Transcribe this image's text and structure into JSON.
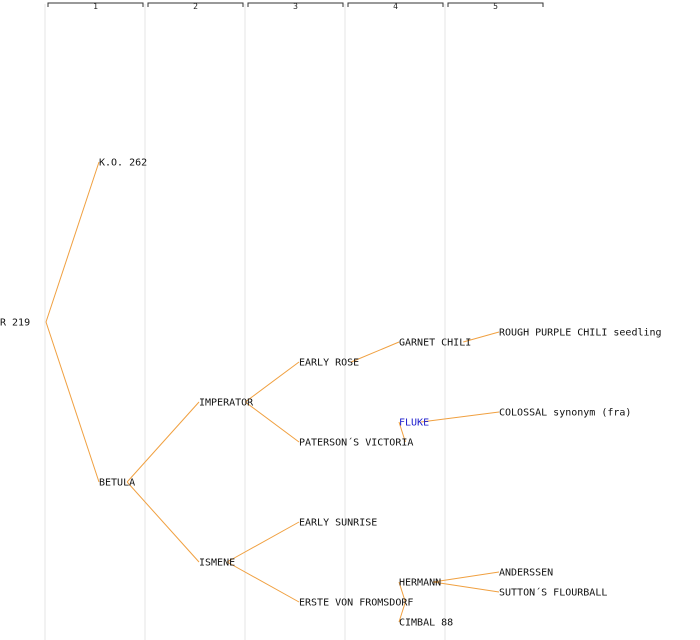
{
  "generations": [
    "1",
    "2",
    "3",
    "4",
    "5"
  ],
  "colors": {
    "branch": "#f0a040",
    "divider": "#e6e6e6",
    "bracket": "#333333",
    "text": "#111111",
    "highlight": "#1a1acc"
  },
  "nodes": [
    {
      "id": "root",
      "label": "R 219",
      "generation": 0,
      "parent": null
    },
    {
      "id": "ko262",
      "label": "K.O. 262",
      "generation": 1,
      "parent": "root"
    },
    {
      "id": "betula",
      "label": "BETULA",
      "generation": 1,
      "parent": "root"
    },
    {
      "id": "imperator",
      "label": "IMPERATOR",
      "generation": 2,
      "parent": "betula"
    },
    {
      "id": "ismene",
      "label": "ISMENE",
      "generation": 2,
      "parent": "betula"
    },
    {
      "id": "early-rose",
      "label": "EARLY ROSE",
      "generation": 3,
      "parent": "imperator"
    },
    {
      "id": "patersons-victoria",
      "label": "PATERSON´S VICTORIA",
      "generation": 3,
      "parent": "imperator"
    },
    {
      "id": "early-sunrise",
      "label": "EARLY SUNRISE",
      "generation": 3,
      "parent": "ismene"
    },
    {
      "id": "erste-von-fromsdorf",
      "label": "ERSTE VON FROMSDORF",
      "generation": 3,
      "parent": "ismene"
    },
    {
      "id": "garnet-chili",
      "label": "GARNET CHILI",
      "generation": 4,
      "parent": "early-rose"
    },
    {
      "id": "fluke",
      "label": "FLUKE",
      "generation": 4,
      "parent": "patersons-victoria",
      "highlight": true
    },
    {
      "id": "hermann",
      "label": "HERMANN",
      "generation": 4,
      "parent": "erste-von-fromsdorf"
    },
    {
      "id": "cimbal-88",
      "label": "CIMBAL 88",
      "generation": 4,
      "parent": "erste-von-fromsdorf"
    },
    {
      "id": "rough-purple-chili",
      "label": "ROUGH PURPLE CHILI seedling",
      "generation": 5,
      "parent": "garnet-chili"
    },
    {
      "id": "colossal",
      "label": "COLOSSAL synonym (fra)",
      "generation": 5,
      "parent": "fluke"
    },
    {
      "id": "anderssen",
      "label": "ANDERSSEN",
      "generation": 5,
      "parent": "hermann"
    },
    {
      "id": "suttons-flourball",
      "label": "SUTTON´S FLOURBALL",
      "generation": 5,
      "parent": "hermann"
    }
  ]
}
